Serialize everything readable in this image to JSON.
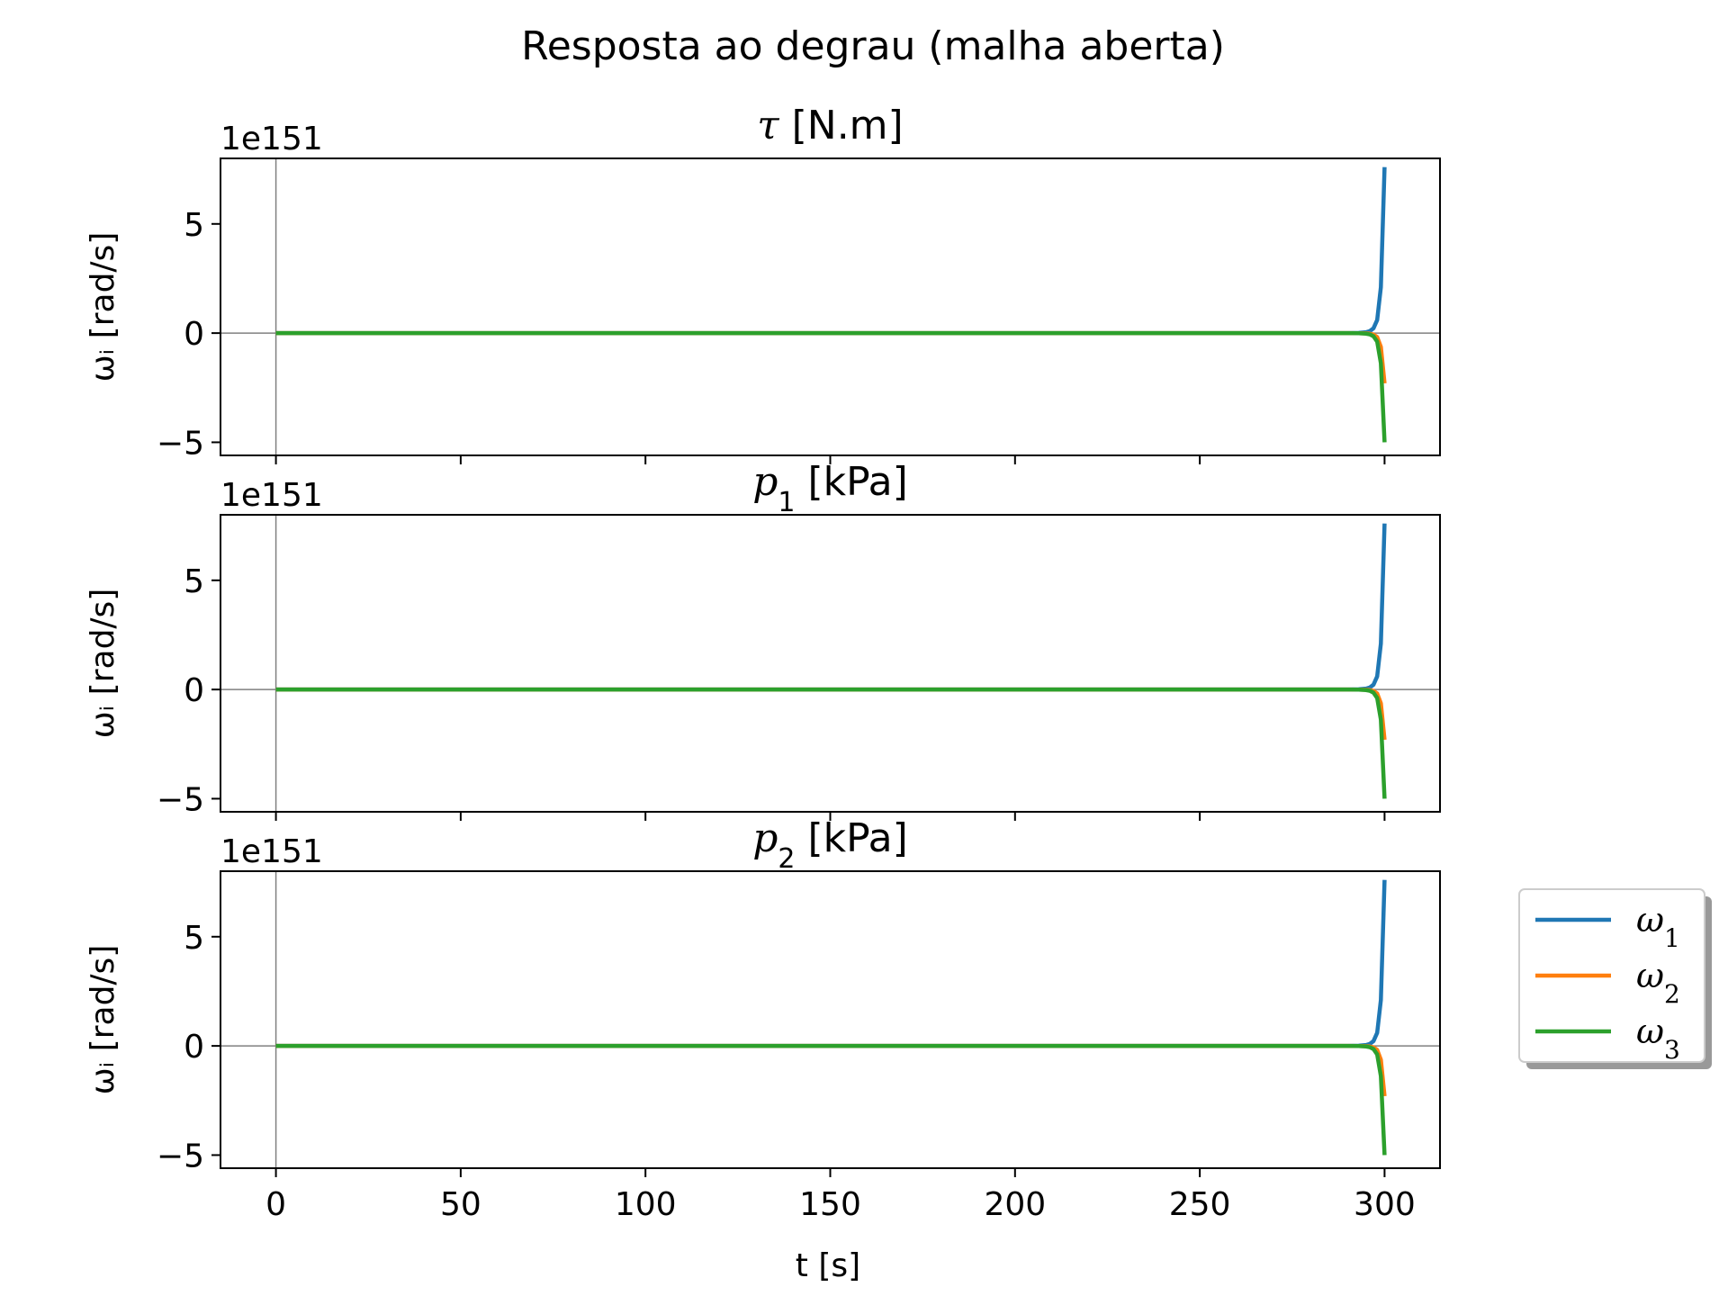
{
  "figure": {
    "title": "Resposta ao degrau (malha aberta)",
    "xlabel": "t [s]",
    "ylabel": "ωᵢ [rad/s]",
    "offset_text": "1e151"
  },
  "colors": {
    "omega1": "#1f77b4",
    "omega2": "#ff7f0e",
    "omega3": "#2ca02c",
    "axes": "#000000",
    "zero_line": "#808080"
  },
  "chart_data": [
    {
      "type": "line",
      "title_symbol": "τ",
      "title_sub": "",
      "title_unit": "[N.m]",
      "xlim": [
        -15,
        315
      ],
      "ylim": [
        -5.6,
        8.0
      ],
      "xticks": [
        0,
        50,
        100,
        150,
        200,
        250,
        300
      ],
      "yticks": [
        -5,
        0,
        5
      ],
      "ytick_labels": [
        "−5",
        "0",
        "5"
      ],
      "offset_text": "1e151",
      "zero_lines": true,
      "series": [
        {
          "name": "ω1",
          "color": "#1f77b4",
          "x": [
            0,
            280,
            290,
            293,
            295,
            296,
            297,
            298,
            299,
            300
          ],
          "y": [
            0,
            0,
            0.001,
            0.01,
            0.04,
            0.09,
            0.22,
            0.6,
            2.1,
            7.6
          ]
        },
        {
          "name": "ω2",
          "color": "#ff7f0e",
          "x": [
            0,
            280,
            290,
            293,
            295,
            296,
            297,
            298,
            299,
            300
          ],
          "y": [
            0,
            0,
            -0.0003,
            -0.003,
            -0.012,
            -0.027,
            -0.066,
            -0.18,
            -0.63,
            -2.3
          ]
        },
        {
          "name": "ω3",
          "color": "#2ca02c",
          "x": [
            0,
            280,
            290,
            293,
            295,
            296,
            297,
            298,
            299,
            300
          ],
          "y": [
            0,
            0,
            -0.0007,
            -0.007,
            -0.026,
            -0.059,
            -0.145,
            -0.39,
            -1.38,
            -5.0
          ]
        }
      ]
    },
    {
      "type": "line",
      "title_symbol": "p",
      "title_sub": "1",
      "title_unit": "[kPa]",
      "xlim": [
        -15,
        315
      ],
      "ylim": [
        -5.6,
        8.0
      ],
      "xticks": [
        0,
        50,
        100,
        150,
        200,
        250,
        300
      ],
      "yticks": [
        -5,
        0,
        5
      ],
      "ytick_labels": [
        "−5",
        "0",
        "5"
      ],
      "offset_text": "1e151",
      "zero_lines": true,
      "series": [
        {
          "name": "ω1",
          "color": "#1f77b4",
          "x": [
            0,
            280,
            290,
            293,
            295,
            296,
            297,
            298,
            299,
            300
          ],
          "y": [
            0,
            0,
            0.001,
            0.01,
            0.04,
            0.09,
            0.22,
            0.6,
            2.1,
            7.6
          ]
        },
        {
          "name": "ω2",
          "color": "#ff7f0e",
          "x": [
            0,
            280,
            290,
            293,
            295,
            296,
            297,
            298,
            299,
            300
          ],
          "y": [
            0,
            0,
            -0.0003,
            -0.003,
            -0.012,
            -0.027,
            -0.066,
            -0.18,
            -0.63,
            -2.3
          ]
        },
        {
          "name": "ω3",
          "color": "#2ca02c",
          "x": [
            0,
            280,
            290,
            293,
            295,
            296,
            297,
            298,
            299,
            300
          ],
          "y": [
            0,
            0,
            -0.0007,
            -0.007,
            -0.026,
            -0.059,
            -0.145,
            -0.39,
            -1.38,
            -5.0
          ]
        }
      ]
    },
    {
      "type": "line",
      "title_symbol": "p",
      "title_sub": "2",
      "title_unit": "[kPa]",
      "xlim": [
        -15,
        315
      ],
      "ylim": [
        -5.6,
        8.0
      ],
      "xticks": [
        0,
        50,
        100,
        150,
        200,
        250,
        300
      ],
      "yticks": [
        -5,
        0,
        5
      ],
      "ytick_labels": [
        "−5",
        "0",
        "5"
      ],
      "offset_text": "1e151",
      "zero_lines": true,
      "series": [
        {
          "name": "ω1",
          "color": "#1f77b4",
          "x": [
            0,
            280,
            290,
            293,
            295,
            296,
            297,
            298,
            299,
            300
          ],
          "y": [
            0,
            0,
            0.001,
            0.01,
            0.04,
            0.09,
            0.22,
            0.6,
            2.1,
            7.6
          ]
        },
        {
          "name": "ω2",
          "color": "#ff7f0e",
          "x": [
            0,
            280,
            290,
            293,
            295,
            296,
            297,
            298,
            299,
            300
          ],
          "y": [
            0,
            0,
            -0.0003,
            -0.003,
            -0.012,
            -0.027,
            -0.066,
            -0.18,
            -0.63,
            -2.3
          ]
        },
        {
          "name": "ω3",
          "color": "#2ca02c",
          "x": [
            0,
            280,
            290,
            293,
            295,
            296,
            297,
            298,
            299,
            300
          ],
          "y": [
            0,
            0,
            -0.0007,
            -0.007,
            -0.026,
            -0.059,
            -0.145,
            -0.39,
            -1.38,
            -5.0
          ]
        }
      ]
    }
  ],
  "legend": {
    "placement": "right of lowest subplot",
    "entries": [
      {
        "symbol": "ω",
        "sub": "1",
        "color": "#1f77b4"
      },
      {
        "symbol": "ω",
        "sub": "2",
        "color": "#ff7f0e"
      },
      {
        "symbol": "ω",
        "sub": "3",
        "color": "#2ca02c"
      }
    ]
  }
}
